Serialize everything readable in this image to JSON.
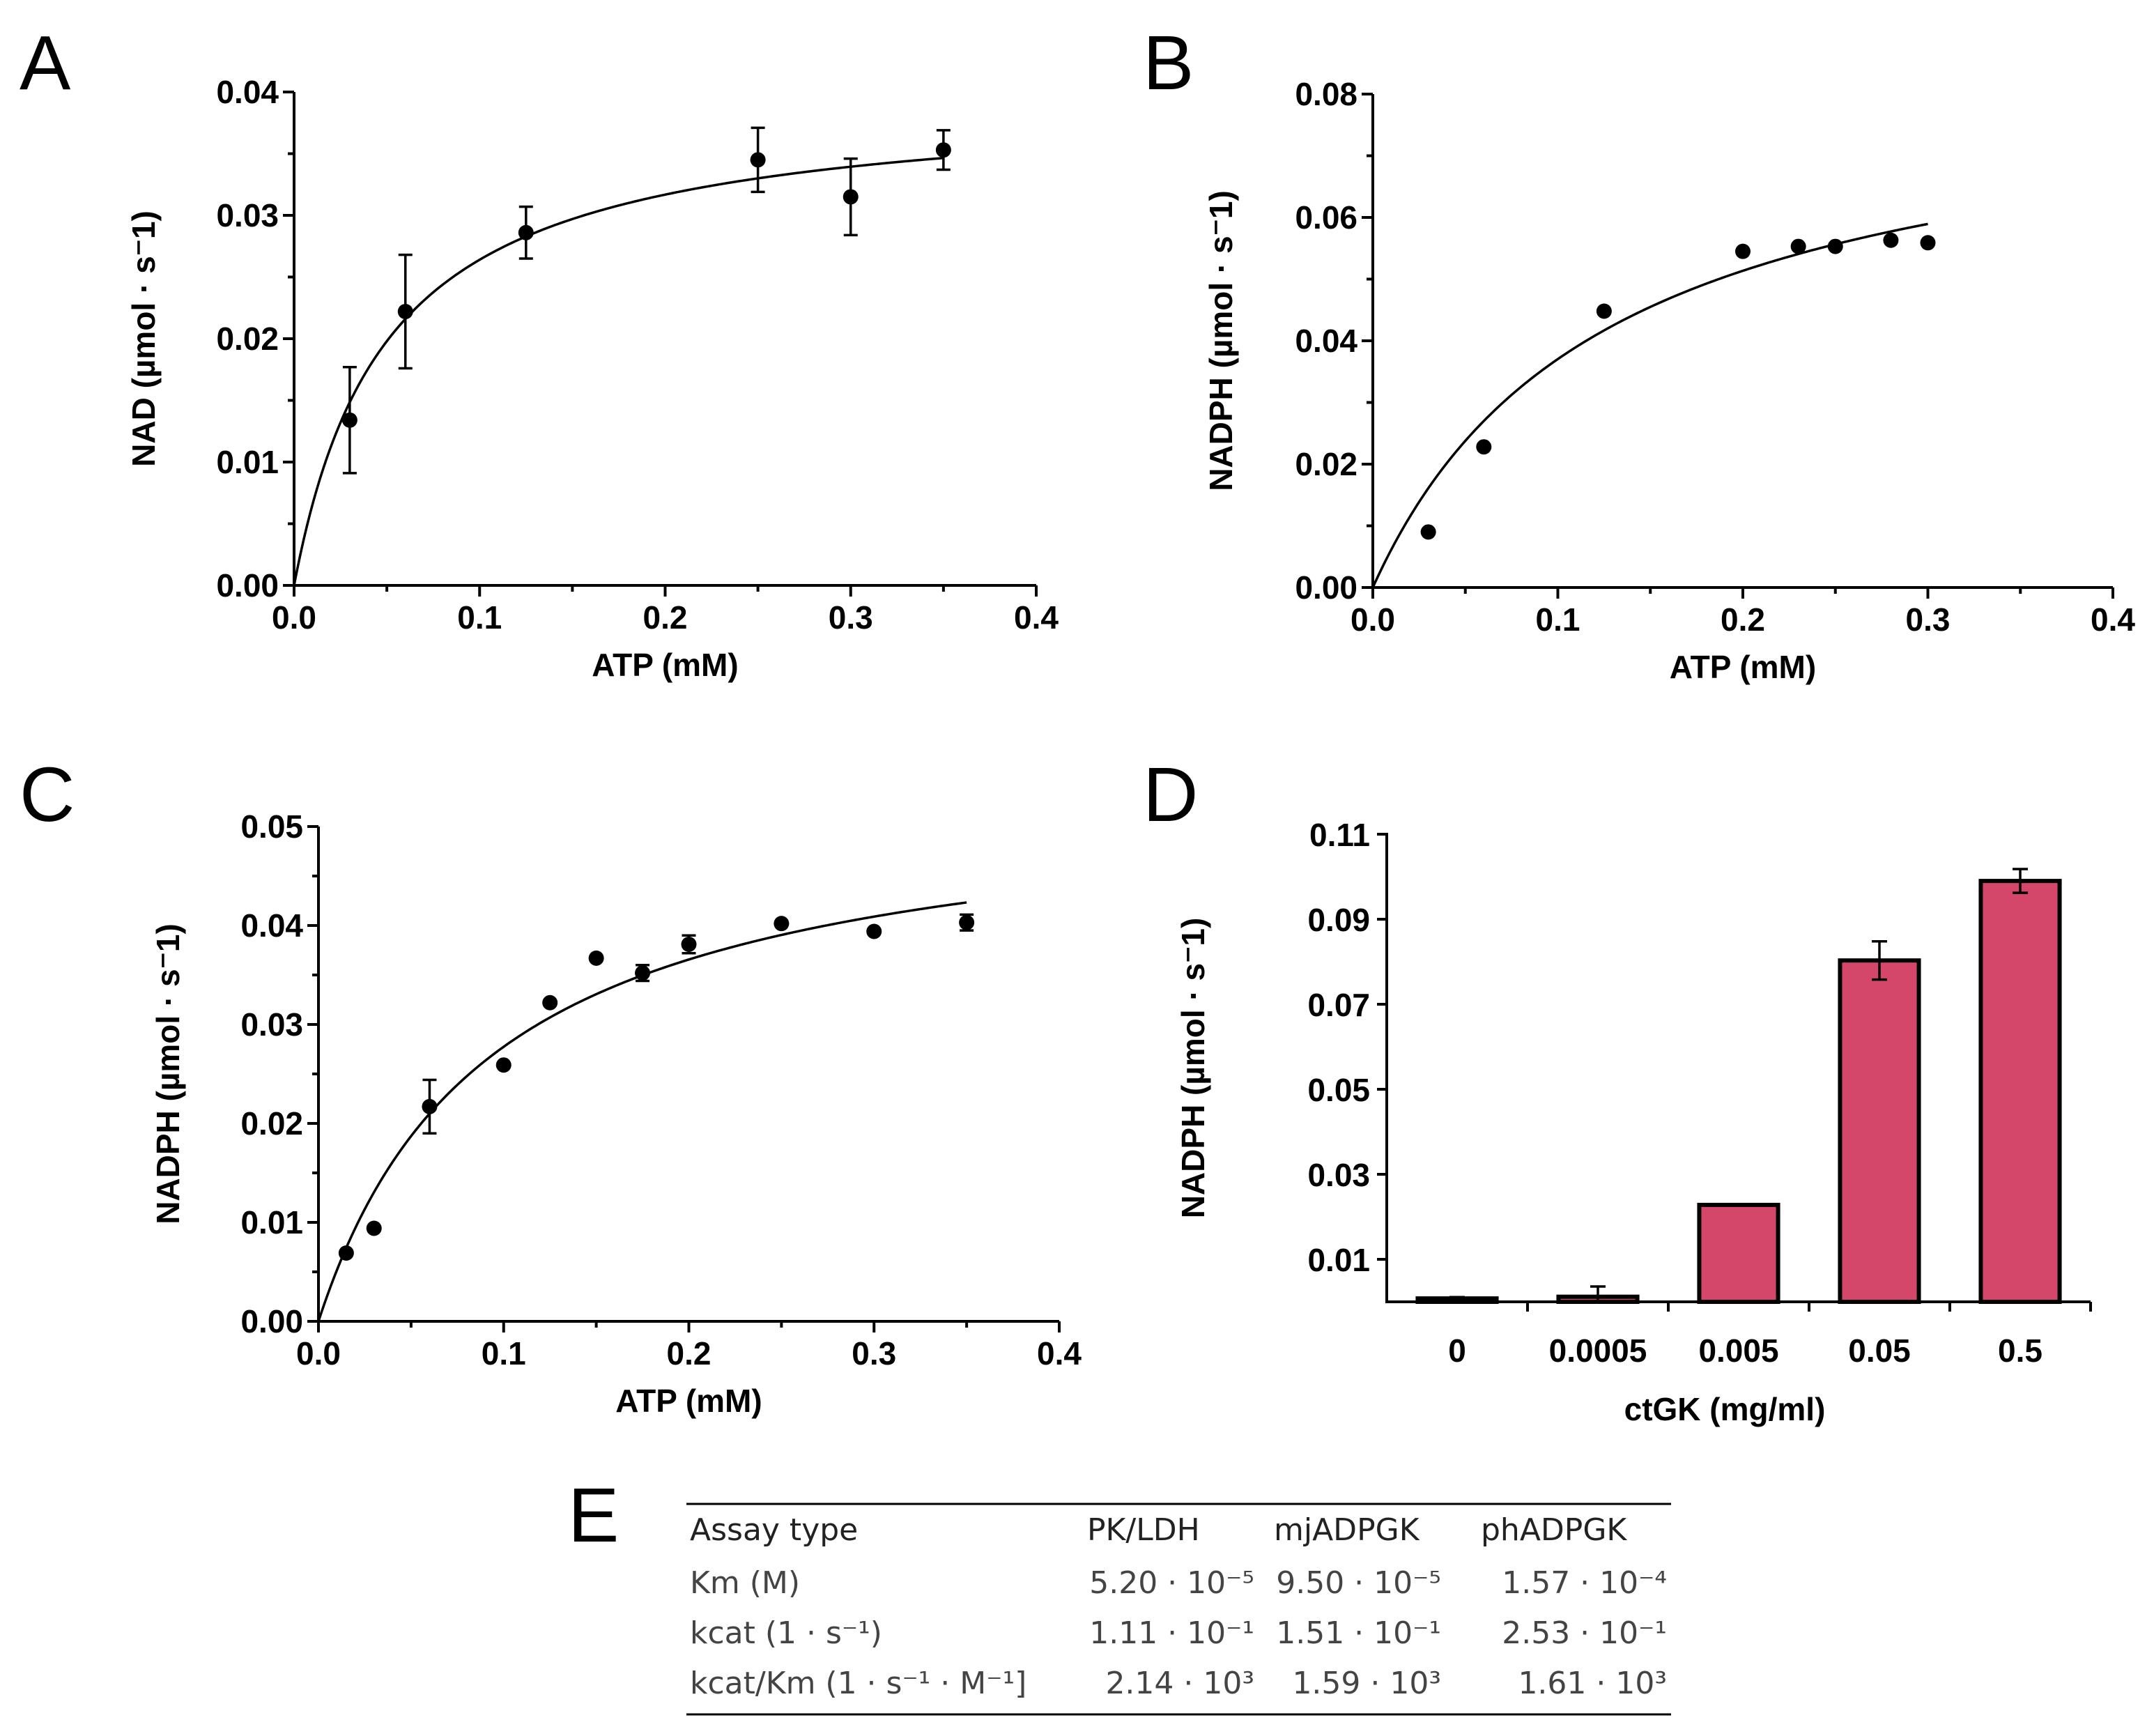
{
  "chart_data": [
    {
      "panel": "A",
      "type": "scatter",
      "xlabel": "ATP (mM)",
      "ylabel": "NAD (µmol · s⁻1)",
      "xlim": [
        0,
        0.4
      ],
      "ylim": [
        0,
        0.04
      ],
      "xticks": [
        "0.0",
        "0.1",
        "0.2",
        "0.3",
        "0.4"
      ],
      "yticks": [
        "0.00",
        "0.01",
        "0.02",
        "0.03",
        "0.04"
      ],
      "x": [
        0.03,
        0.06,
        0.125,
        0.25,
        0.3,
        0.35
      ],
      "y": [
        0.0134,
        0.0222,
        0.0286,
        0.0345,
        0.0315,
        0.0353
      ],
      "err": [
        0.0043,
        0.0046,
        0.0021,
        0.0026,
        0.0031,
        0.0016
      ],
      "fit": {
        "model": "michaelis-menten",
        "vmax": 0.0396,
        "km": 0.05,
        "xmax": 0.35
      }
    },
    {
      "panel": "B",
      "type": "scatter",
      "xlabel": "ATP (mM)",
      "ylabel": "NADPH (µmol · s⁻1)",
      "xlim": [
        0,
        0.4
      ],
      "ylim": [
        0,
        0.08
      ],
      "xticks": [
        "0.0",
        "0.1",
        "0.2",
        "0.3",
        "0.4"
      ],
      "yticks": [
        "0.00",
        "0.02",
        "0.04",
        "0.06",
        "0.08"
      ],
      "x": [
        0.03,
        0.06,
        0.125,
        0.2,
        0.23,
        0.25,
        0.28,
        0.3
      ],
      "y": [
        0.009,
        0.0228,
        0.0448,
        0.0545,
        0.0553,
        0.0553,
        0.0563,
        0.0559
      ],
      "err": [
        0,
        0,
        0,
        0,
        0,
        0,
        0,
        0
      ],
      "fit": {
        "model": "michaelis-menten",
        "vmax": 0.0837,
        "km": 0.126,
        "xmax": 0.3
      }
    },
    {
      "panel": "C",
      "type": "scatter",
      "xlabel": "ATP (mM)",
      "ylabel": "NADPH (µmol · s⁻1)",
      "xlim": [
        0,
        0.4
      ],
      "ylim": [
        0,
        0.05
      ],
      "xticks": [
        "0.0",
        "0.1",
        "0.2",
        "0.3",
        "0.4"
      ],
      "yticks": [
        "0.00",
        "0.01",
        "0.02",
        "0.03",
        "0.04",
        "0.05"
      ],
      "x": [
        0.015,
        0.03,
        0.06,
        0.1,
        0.125,
        0.15,
        0.175,
        0.2,
        0.25,
        0.3,
        0.35
      ],
      "y": [
        0.0069,
        0.0094,
        0.0217,
        0.0259,
        0.0322,
        0.0367,
        0.0352,
        0.0381,
        0.0402,
        0.0394,
        0.0403
      ],
      "err": [
        0,
        0,
        0.0027,
        0,
        0,
        0,
        0.0008,
        0.0009,
        0,
        0,
        0.0008
      ],
      "fit": {
        "model": "michaelis-menten",
        "vmax": 0.0536,
        "km": 0.0932,
        "xmax": 0.35
      }
    },
    {
      "panel": "D",
      "type": "bar",
      "xlabel": "ctGK (mg/ml)",
      "ylabel": "NADPH (µmol · s⁻1)",
      "categories": [
        "0",
        "0.0005",
        "0.005",
        "0.05",
        "0.5"
      ],
      "values": [
        0.0008,
        0.0012,
        0.0228,
        0.0803,
        0.099
      ],
      "err": [
        0.0003,
        0.0024,
        0,
        0.0045,
        0.0028
      ],
      "ylim": [
        0,
        0.11
      ],
      "yticks": [
        "0.01",
        "0.03",
        "0.05",
        "0.07",
        "0.09",
        "0.11"
      ],
      "color": "#d5476a"
    },
    {
      "panel": "E",
      "type": "table",
      "columns": [
        "Assay type",
        "PK/LDH",
        "mjADPGK",
        "phADPGK"
      ],
      "rows": [
        [
          "Km (M)",
          "5.20 · 10⁻⁵",
          "9.50 · 10⁻⁵",
          "1.57 · 10⁻⁴"
        ],
        [
          "kcat (1 · s⁻¹)",
          "1.11 · 10⁻¹",
          "1.51 · 10⁻¹",
          "2.53 · 10⁻¹"
        ],
        [
          "kcat/Km (1 · s⁻¹ · M⁻¹]",
          "2.14 · 10³",
          "1.59 · 10³",
          "1.61 · 10³"
        ]
      ]
    }
  ]
}
